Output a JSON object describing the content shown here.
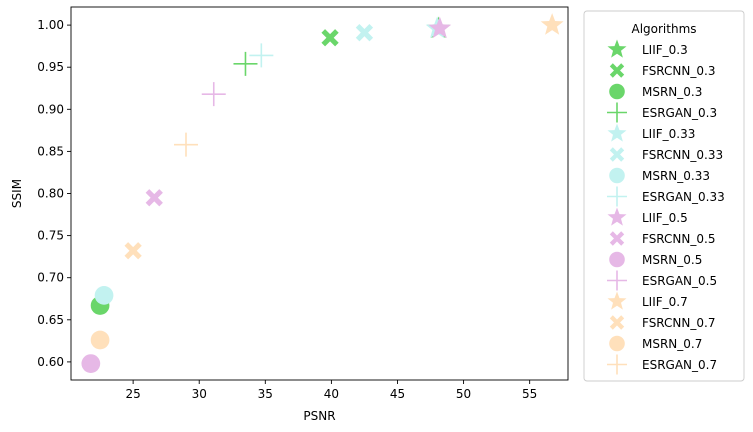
{
  "chart_data": {
    "type": "scatter",
    "xlabel": "PSNR",
    "ylabel": "SSIM",
    "xlim": [
      20.3,
      57.9
    ],
    "ylim": [
      0.5785,
      1.0215
    ],
    "xticks": [
      25,
      30,
      35,
      40,
      45,
      50,
      55
    ],
    "yticks": [
      0.6,
      0.65,
      0.7,
      0.75,
      0.8,
      0.85,
      0.9,
      0.95,
      1.0
    ],
    "xtick_labels": [
      "25",
      "30",
      "35",
      "40",
      "45",
      "50",
      "55"
    ],
    "ytick_labels": [
      "0.60",
      "0.65",
      "0.70",
      "0.75",
      "0.80",
      "0.85",
      "0.90",
      "0.95",
      "1.00"
    ],
    "grid": false,
    "legend": {
      "title": "Algorithms",
      "placement": "outside-right"
    },
    "series": [
      {
        "name": "LIIF_0.3",
        "marker": "star",
        "color": "#6ad66a",
        "x": [
          48.1
        ],
        "y": [
          0.996
        ]
      },
      {
        "name": "FSRCNN_0.3",
        "marker": "x",
        "color": "#6ad66a",
        "x": [
          39.9
        ],
        "y": [
          0.985
        ]
      },
      {
        "name": "MSRN_0.3",
        "marker": "circle",
        "color": "#6ad66a",
        "x": [
          22.5
        ],
        "y": [
          0.667
        ]
      },
      {
        "name": "ESRGAN_0.3",
        "marker": "plus",
        "color": "#6ad66a",
        "x": [
          33.5
        ],
        "y": [
          0.954
        ]
      },
      {
        "name": "LIIF_0.33",
        "marker": "star",
        "color": "#c2f2f0",
        "x": [
          48.0
        ],
        "y": [
          0.996
        ]
      },
      {
        "name": "FSRCNN_0.33",
        "marker": "x",
        "color": "#c2f2f0",
        "x": [
          42.5
        ],
        "y": [
          0.991
        ]
      },
      {
        "name": "MSRN_0.33",
        "marker": "circle",
        "color": "#c2f2f0",
        "x": [
          22.8
        ],
        "y": [
          0.679
        ]
      },
      {
        "name": "ESRGAN_0.33",
        "marker": "plus",
        "color": "#c2f2f0",
        "x": [
          34.7
        ],
        "y": [
          0.964
        ]
      },
      {
        "name": "LIIF_0.5",
        "marker": "star",
        "color": "#e6b8e6",
        "x": [
          48.2
        ],
        "y": [
          0.996
        ]
      },
      {
        "name": "FSRCNN_0.5",
        "marker": "x",
        "color": "#e6b8e6",
        "x": [
          26.6
        ],
        "y": [
          0.795
        ]
      },
      {
        "name": "MSRN_0.5",
        "marker": "circle",
        "color": "#e6b8e6",
        "x": [
          21.8
        ],
        "y": [
          0.598
        ]
      },
      {
        "name": "ESRGAN_0.5",
        "marker": "plus",
        "color": "#e6b8e6",
        "x": [
          31.1
        ],
        "y": [
          0.918
        ]
      },
      {
        "name": "LIIF_0.7",
        "marker": "star",
        "color": "#ffe0bb",
        "x": [
          56.7
        ],
        "y": [
          1.0
        ]
      },
      {
        "name": "FSRCNN_0.7",
        "marker": "x",
        "color": "#ffe0bb",
        "x": [
          25.0
        ],
        "y": [
          0.732
        ]
      },
      {
        "name": "MSRN_0.7",
        "marker": "circle",
        "color": "#ffe0bb",
        "x": [
          22.5
        ],
        "y": [
          0.626
        ]
      },
      {
        "name": "ESRGAN_0.7",
        "marker": "plus",
        "color": "#ffe0bb",
        "x": [
          29.0
        ],
        "y": [
          0.858
        ]
      }
    ]
  }
}
